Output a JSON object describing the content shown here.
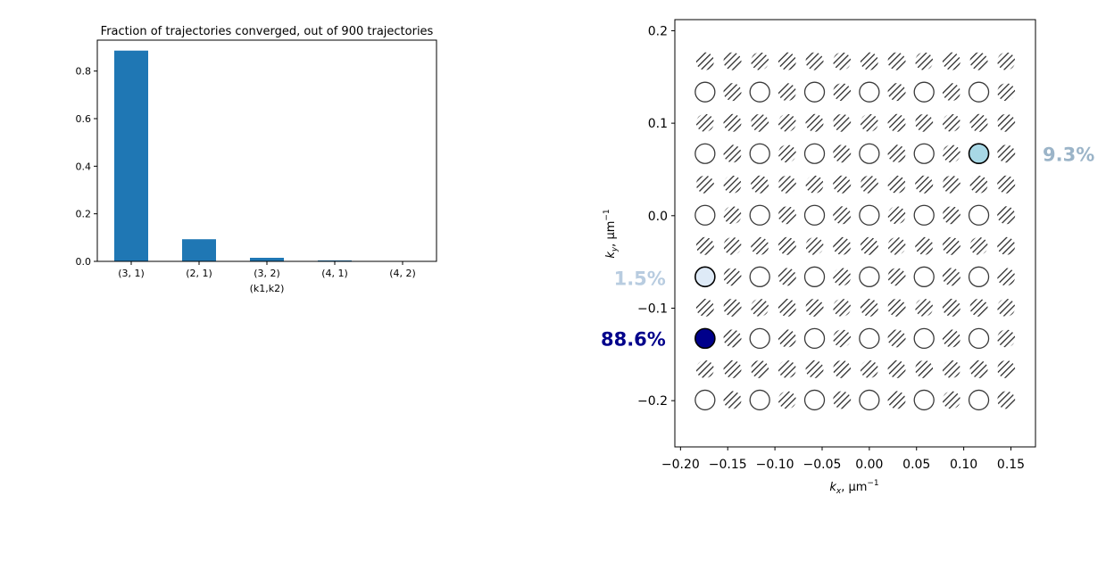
{
  "chart_data": [
    {
      "type": "bar",
      "title": "Fraction of trajectories converged, out of 900 trajectories",
      "xlabel": "(k1,k2)",
      "ylabel": "",
      "categories": [
        "(3, 1)",
        "(2, 1)",
        "(3, 2)",
        "(4, 1)",
        "(4, 2)"
      ],
      "values": [
        0.886,
        0.093,
        0.015,
        0.004,
        0.001
      ],
      "ylim": [
        0,
        0.93
      ],
      "yticks": [
        0.0,
        0.2,
        0.4,
        0.6,
        0.8
      ],
      "ytick_labels": [
        "0.0",
        "0.2",
        "0.4",
        "0.6",
        "0.8"
      ],
      "bar_color": "#1f77b4",
      "grid": false,
      "legend": "none"
    },
    {
      "type": "scatter",
      "title": "",
      "xlabel": "kₓ, μm⁻¹",
      "ylabel": "kᵧ, μm⁻¹",
      "xlabel_base": "k",
      "xlabel_sub": "x",
      "xlabel_unit": ", μm",
      "xlabel_sup": "−1",
      "ylabel_base": "k",
      "ylabel_sub": "y",
      "ylabel_unit": ", μm",
      "ylabel_sup": "−1",
      "xlim": [
        -0.206,
        0.176
      ],
      "ylim": [
        -0.25,
        0.212
      ],
      "xticks": [
        -0.2,
        -0.15,
        -0.1,
        -0.05,
        0.0,
        0.05,
        0.1,
        0.15
      ],
      "xtick_labels": [
        "−0.20",
        "−0.15",
        "−0.10",
        "−0.05",
        "0.00",
        "0.05",
        "0.10",
        "0.15"
      ],
      "yticks": [
        -0.2,
        -0.1,
        0.0,
        0.1,
        0.2
      ],
      "ytick_labels": [
        "−0.2",
        "−0.1",
        "0.0",
        "0.1",
        "0.2"
      ],
      "grid_x_first": -0.174,
      "grid_x_step": 0.029,
      "grid_x_count": 12,
      "grid_y_first": 0.167,
      "grid_y_step": -0.0333,
      "grid_y_count": 12,
      "open_circle_rows": [
        1,
        3,
        5,
        7,
        9,
        11
      ],
      "open_circle_cols": [
        0,
        2,
        4,
        6,
        8,
        10
      ],
      "highlighted": [
        {
          "kx": -0.174,
          "ky": -0.133,
          "label": "88.6%",
          "color": "#00008b",
          "label_color": "#00008b",
          "side": "left"
        },
        {
          "kx": -0.174,
          "ky": -0.067,
          "label": "1.5%",
          "color": "#deeaf7",
          "label_color": "#b8cce0",
          "side": "left"
        },
        {
          "kx": 0.116,
          "ky": 0.067,
          "label": "9.3%",
          "color": "#a8d8e6",
          "label_color": "#9bb4c8",
          "side": "right"
        }
      ],
      "grid": false,
      "legend": "none"
    }
  ]
}
